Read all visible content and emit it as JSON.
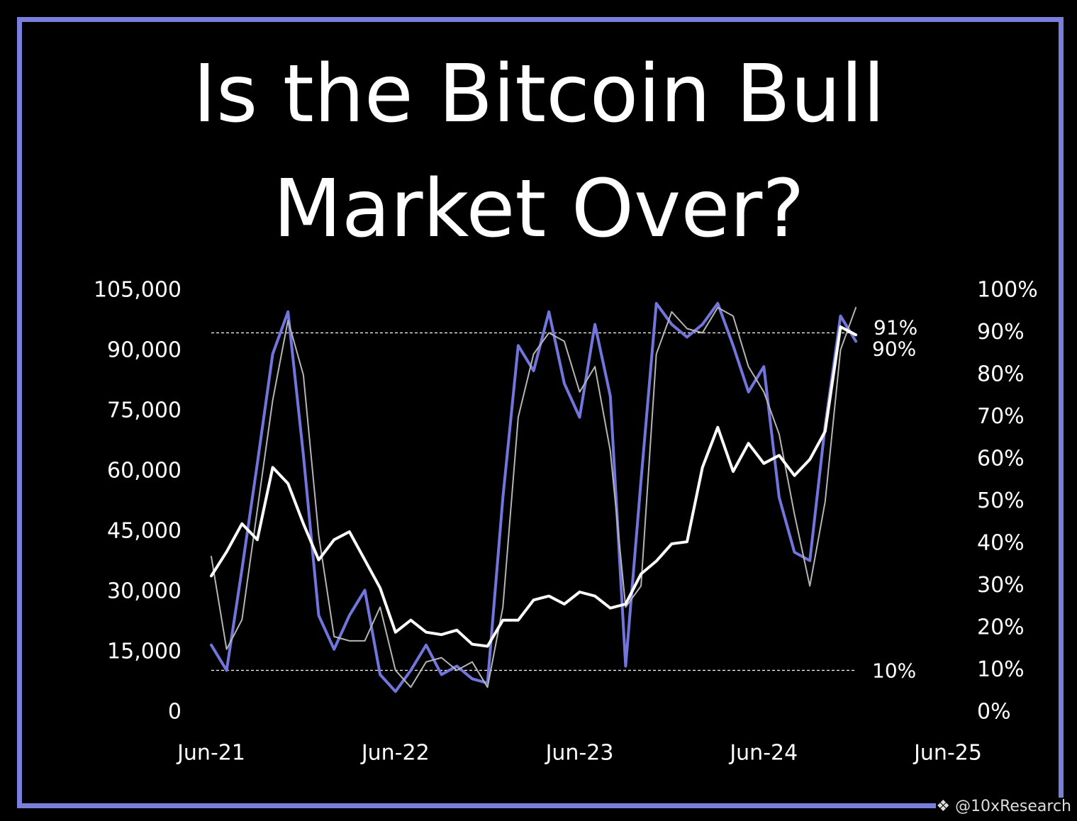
{
  "chart_data": {
    "type": "line",
    "title": "Is the Bitcoin Bull Market Over?",
    "watermark": "@10xResearch",
    "x": [
      "2021-06",
      "2021-07",
      "2021-08",
      "2021-09",
      "2021-10",
      "2021-11",
      "2021-12",
      "2022-01",
      "2022-02",
      "2022-03",
      "2022-04",
      "2022-05",
      "2022-06",
      "2022-07",
      "2022-08",
      "2022-09",
      "2022-10",
      "2022-11",
      "2022-12",
      "2023-01",
      "2023-02",
      "2023-03",
      "2023-04",
      "2023-05",
      "2023-06",
      "2023-07",
      "2023-08",
      "2023-09",
      "2023-10",
      "2023-11",
      "2023-12",
      "2024-01",
      "2024-02",
      "2024-03",
      "2024-04",
      "2024-05",
      "2024-06",
      "2024-07",
      "2024-08",
      "2024-09",
      "2024-10",
      "2024-11",
      "2024-12"
    ],
    "xlim": [
      "2021-06",
      "2025-06"
    ],
    "xticks": [
      {
        "value": "2021-06",
        "label": "Jun-21"
      },
      {
        "value": "2022-06",
        "label": "Jun-22"
      },
      {
        "value": "2023-06",
        "label": "Jun-23"
      },
      {
        "value": "2024-06",
        "label": "Jun-24"
      },
      {
        "value": "2025-06",
        "label": "Jun-25"
      }
    ],
    "ylim": [
      0,
      105000
    ],
    "yticks": [
      0,
      {
        "value": 15000,
        "label": "15,000"
      },
      {
        "value": 30000,
        "label": "30,000"
      },
      {
        "value": 45000,
        "label": "45,000"
      },
      {
        "value": 60000,
        "label": "60,000"
      },
      {
        "value": 75000,
        "label": "75,000"
      },
      {
        "value": 90000,
        "label": "90,000"
      },
      {
        "value": 105000,
        "label": "105,000"
      }
    ],
    "y2lim": [
      0,
      100
    ],
    "y2ticks": [
      {
        "value": 0,
        "label": "0%"
      },
      {
        "value": 10,
        "label": "10%"
      },
      {
        "value": 20,
        "label": "20%"
      },
      {
        "value": 30,
        "label": "30%"
      },
      {
        "value": 40,
        "label": "40%"
      },
      {
        "value": 50,
        "label": "50%"
      },
      {
        "value": 60,
        "label": "60%"
      },
      {
        "value": 70,
        "label": "70%"
      },
      {
        "value": 80,
        "label": "80%"
      },
      {
        "value": 90,
        "label": "90%"
      },
      {
        "value": 100,
        "label": "100%"
      }
    ],
    "series": [
      {
        "color": "#7276dc",
        "axis": "y2",
        "width": 4,
        "values": [
          16,
          10,
          34,
          59,
          85,
          95,
          61,
          23,
          15,
          23,
          29,
          9,
          5,
          10,
          16,
          9,
          11,
          8,
          7,
          51,
          87,
          81,
          95,
          78,
          70,
          92,
          75,
          11,
          55,
          97,
          92,
          89,
          92,
          97,
          87,
          76,
          82,
          51,
          38,
          36,
          68,
          94,
          88
        ]
      },
      {
        "color": "#b5b5b5",
        "axis": "y2",
        "width": 2,
        "values": [
          37,
          15,
          22,
          48,
          74,
          93,
          80,
          42,
          18,
          17,
          17,
          25,
          10,
          6,
          12,
          13,
          10,
          12,
          6,
          25,
          70,
          85,
          90,
          88,
          76,
          82,
          62,
          25,
          30,
          85,
          95,
          91,
          90,
          96,
          94,
          82,
          76,
          66,
          47,
          30,
          50,
          86,
          96
        ]
      },
      {
        "color": "#ffffff",
        "width": 4,
        "values": [
          34000,
          40000,
          47000,
          43000,
          61000,
          57000,
          47000,
          38000,
          43000,
          45000,
          38000,
          31000,
          20000,
          23000,
          20000,
          19400,
          20500,
          17000,
          16500,
          23000,
          23000,
          28000,
          29000,
          27000,
          30000,
          29000,
          26000,
          27000,
          34500,
          37700,
          42000,
          42500,
          61000,
          71000,
          60000,
          67000,
          62000,
          64000,
          59000,
          63000,
          70000,
          96000,
          94000
        ]
      }
    ],
    "reference_lines": [
      {
        "value": 90,
        "label": "90%"
      },
      {
        "value": 10,
        "label": "10%"
      }
    ],
    "annotations": [
      {
        "value": 91,
        "label": "91%"
      }
    ]
  }
}
